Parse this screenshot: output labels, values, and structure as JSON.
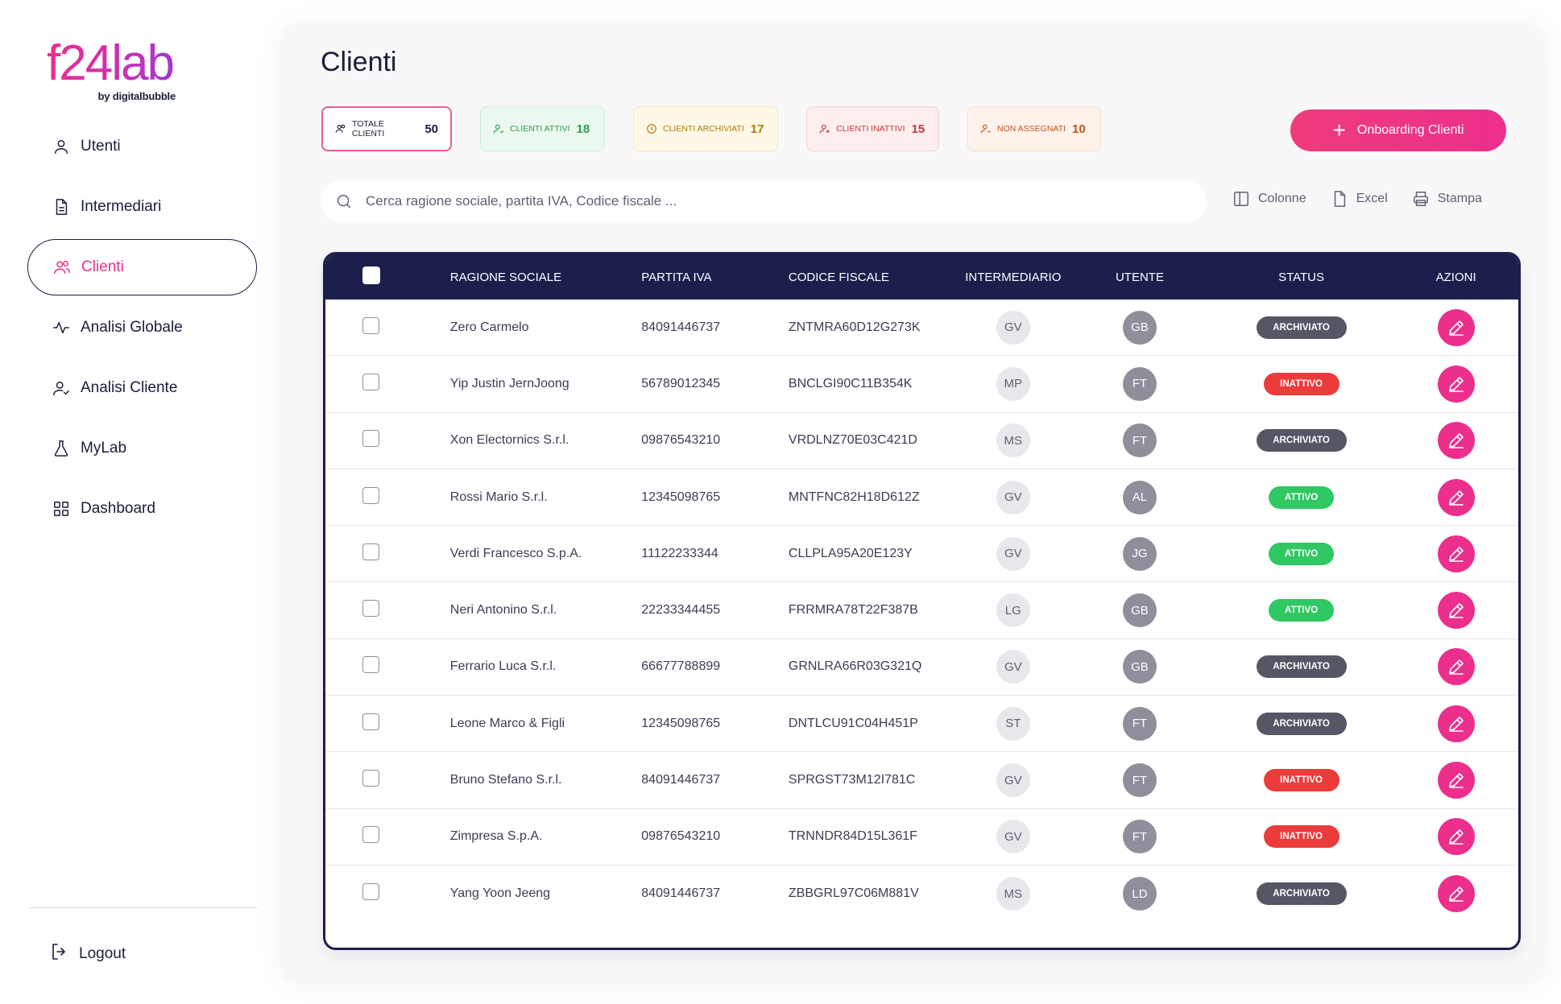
{
  "brand": {
    "logo_text": "f24lab",
    "tagline": "by digitalbubble",
    "accent": "#ec2f8c",
    "navy": "#1c1f4c"
  },
  "sidebar": {
    "items": [
      {
        "label": "Utenti",
        "icon": "user-icon"
      },
      {
        "label": "Intermediari",
        "icon": "document-icon"
      },
      {
        "label": "Clienti",
        "icon": "users-icon",
        "active": true
      },
      {
        "label": "Analisi Globale",
        "icon": "activity-icon"
      },
      {
        "label": "Analisi Cliente",
        "icon": "user-check-icon"
      },
      {
        "label": "MyLab",
        "icon": "flask-icon"
      },
      {
        "label": "Dashboard",
        "icon": "grid-icon"
      }
    ],
    "logout_label": "Logout"
  },
  "page": {
    "title": "Clienti"
  },
  "chips": [
    {
      "label": "TOTALE CLIENTI",
      "count": "50"
    },
    {
      "label": "CLIENTI ATTIVI",
      "count": "18"
    },
    {
      "label": "CLIENTI ARCHIVIATI",
      "count": "17"
    },
    {
      "label": "CLIENTI INATTIVI",
      "count": "15"
    },
    {
      "label": "NON ASSEGNATI",
      "count": "10"
    }
  ],
  "onboarding_button": {
    "label": "Onboarding Clienti"
  },
  "search": {
    "placeholder": "Cerca ragione sociale, partita IVA, Codice fiscale ..."
  },
  "toolbar": {
    "columns_label": "Colonne",
    "excel_label": "Excel",
    "print_label": "Stampa"
  },
  "table": {
    "headers": {
      "name": "RAGIONE SOCIALE",
      "piva": "PARTITA IVA",
      "cf": "CODICE FISCALE",
      "intermediary": "INTERMEDIARIO",
      "user": "UTENTE",
      "status": "STATUS",
      "actions": "AZIONI"
    },
    "rows": [
      {
        "name": "Zero Carmelo",
        "piva": "84091446737",
        "cf": "ZNTMRA60D12G273K",
        "intermediary": "GV",
        "user": "GB",
        "status": "ARCHIVIATO"
      },
      {
        "name": "Yip Justin JernJoong",
        "piva": "56789012345",
        "cf": "BNCLGI90C11B354K",
        "intermediary": "MP",
        "user": "FT",
        "status": "INATTIVO"
      },
      {
        "name": "Xon Electornics S.r.l.",
        "piva": "09876543210",
        "cf": "VRDLNZ70E03C421D",
        "intermediary": "MS",
        "user": "FT",
        "status": "ARCHIVIATO"
      },
      {
        "name": "Rossi Mario S.r.l.",
        "piva": "12345098765",
        "cf": "MNTFNC82H18D612Z",
        "intermediary": "GV",
        "user": "AL",
        "status": "ATTIVO"
      },
      {
        "name": "Verdi Francesco S.p.A.",
        "piva": "11122233344",
        "cf": "CLLPLA95A20E123Y",
        "intermediary": "GV",
        "user": "JG",
        "status": "ATTIVO"
      },
      {
        "name": "Neri Antonino S.r.l.",
        "piva": "22233344455",
        "cf": "FRRMRA78T22F387B",
        "intermediary": "LG",
        "user": "GB",
        "status": "ATTIVO"
      },
      {
        "name": "Ferrario Luca S.r.l.",
        "piva": "66677788899",
        "cf": "GRNLRA66R03G321Q",
        "intermediary": "GV",
        "user": "GB",
        "status": "ARCHIVIATO"
      },
      {
        "name": "Leone Marco & Figli",
        "piva": "12345098765",
        "cf": "DNTLCU91C04H451P",
        "intermediary": "ST",
        "user": "FT",
        "status": "ARCHIVIATO"
      },
      {
        "name": "Bruno Stefano S.r.l.",
        "piva": "84091446737",
        "cf": "SPRGST73M12I781C",
        "intermediary": "GV",
        "user": "FT",
        "status": "INATTIVO"
      },
      {
        "name": "Zimpresa S.p.A.",
        "piva": "09876543210",
        "cf": "TRNNDR84D15L361F",
        "intermediary": "GV",
        "user": "FT",
        "status": "INATTIVO"
      },
      {
        "name": "Yang Yoon Jeeng",
        "piva": "84091446737",
        "cf": "ZBBGRL97C06M881V",
        "intermediary": "MS",
        "user": "LD",
        "status": "ARCHIVIATO"
      }
    ]
  }
}
